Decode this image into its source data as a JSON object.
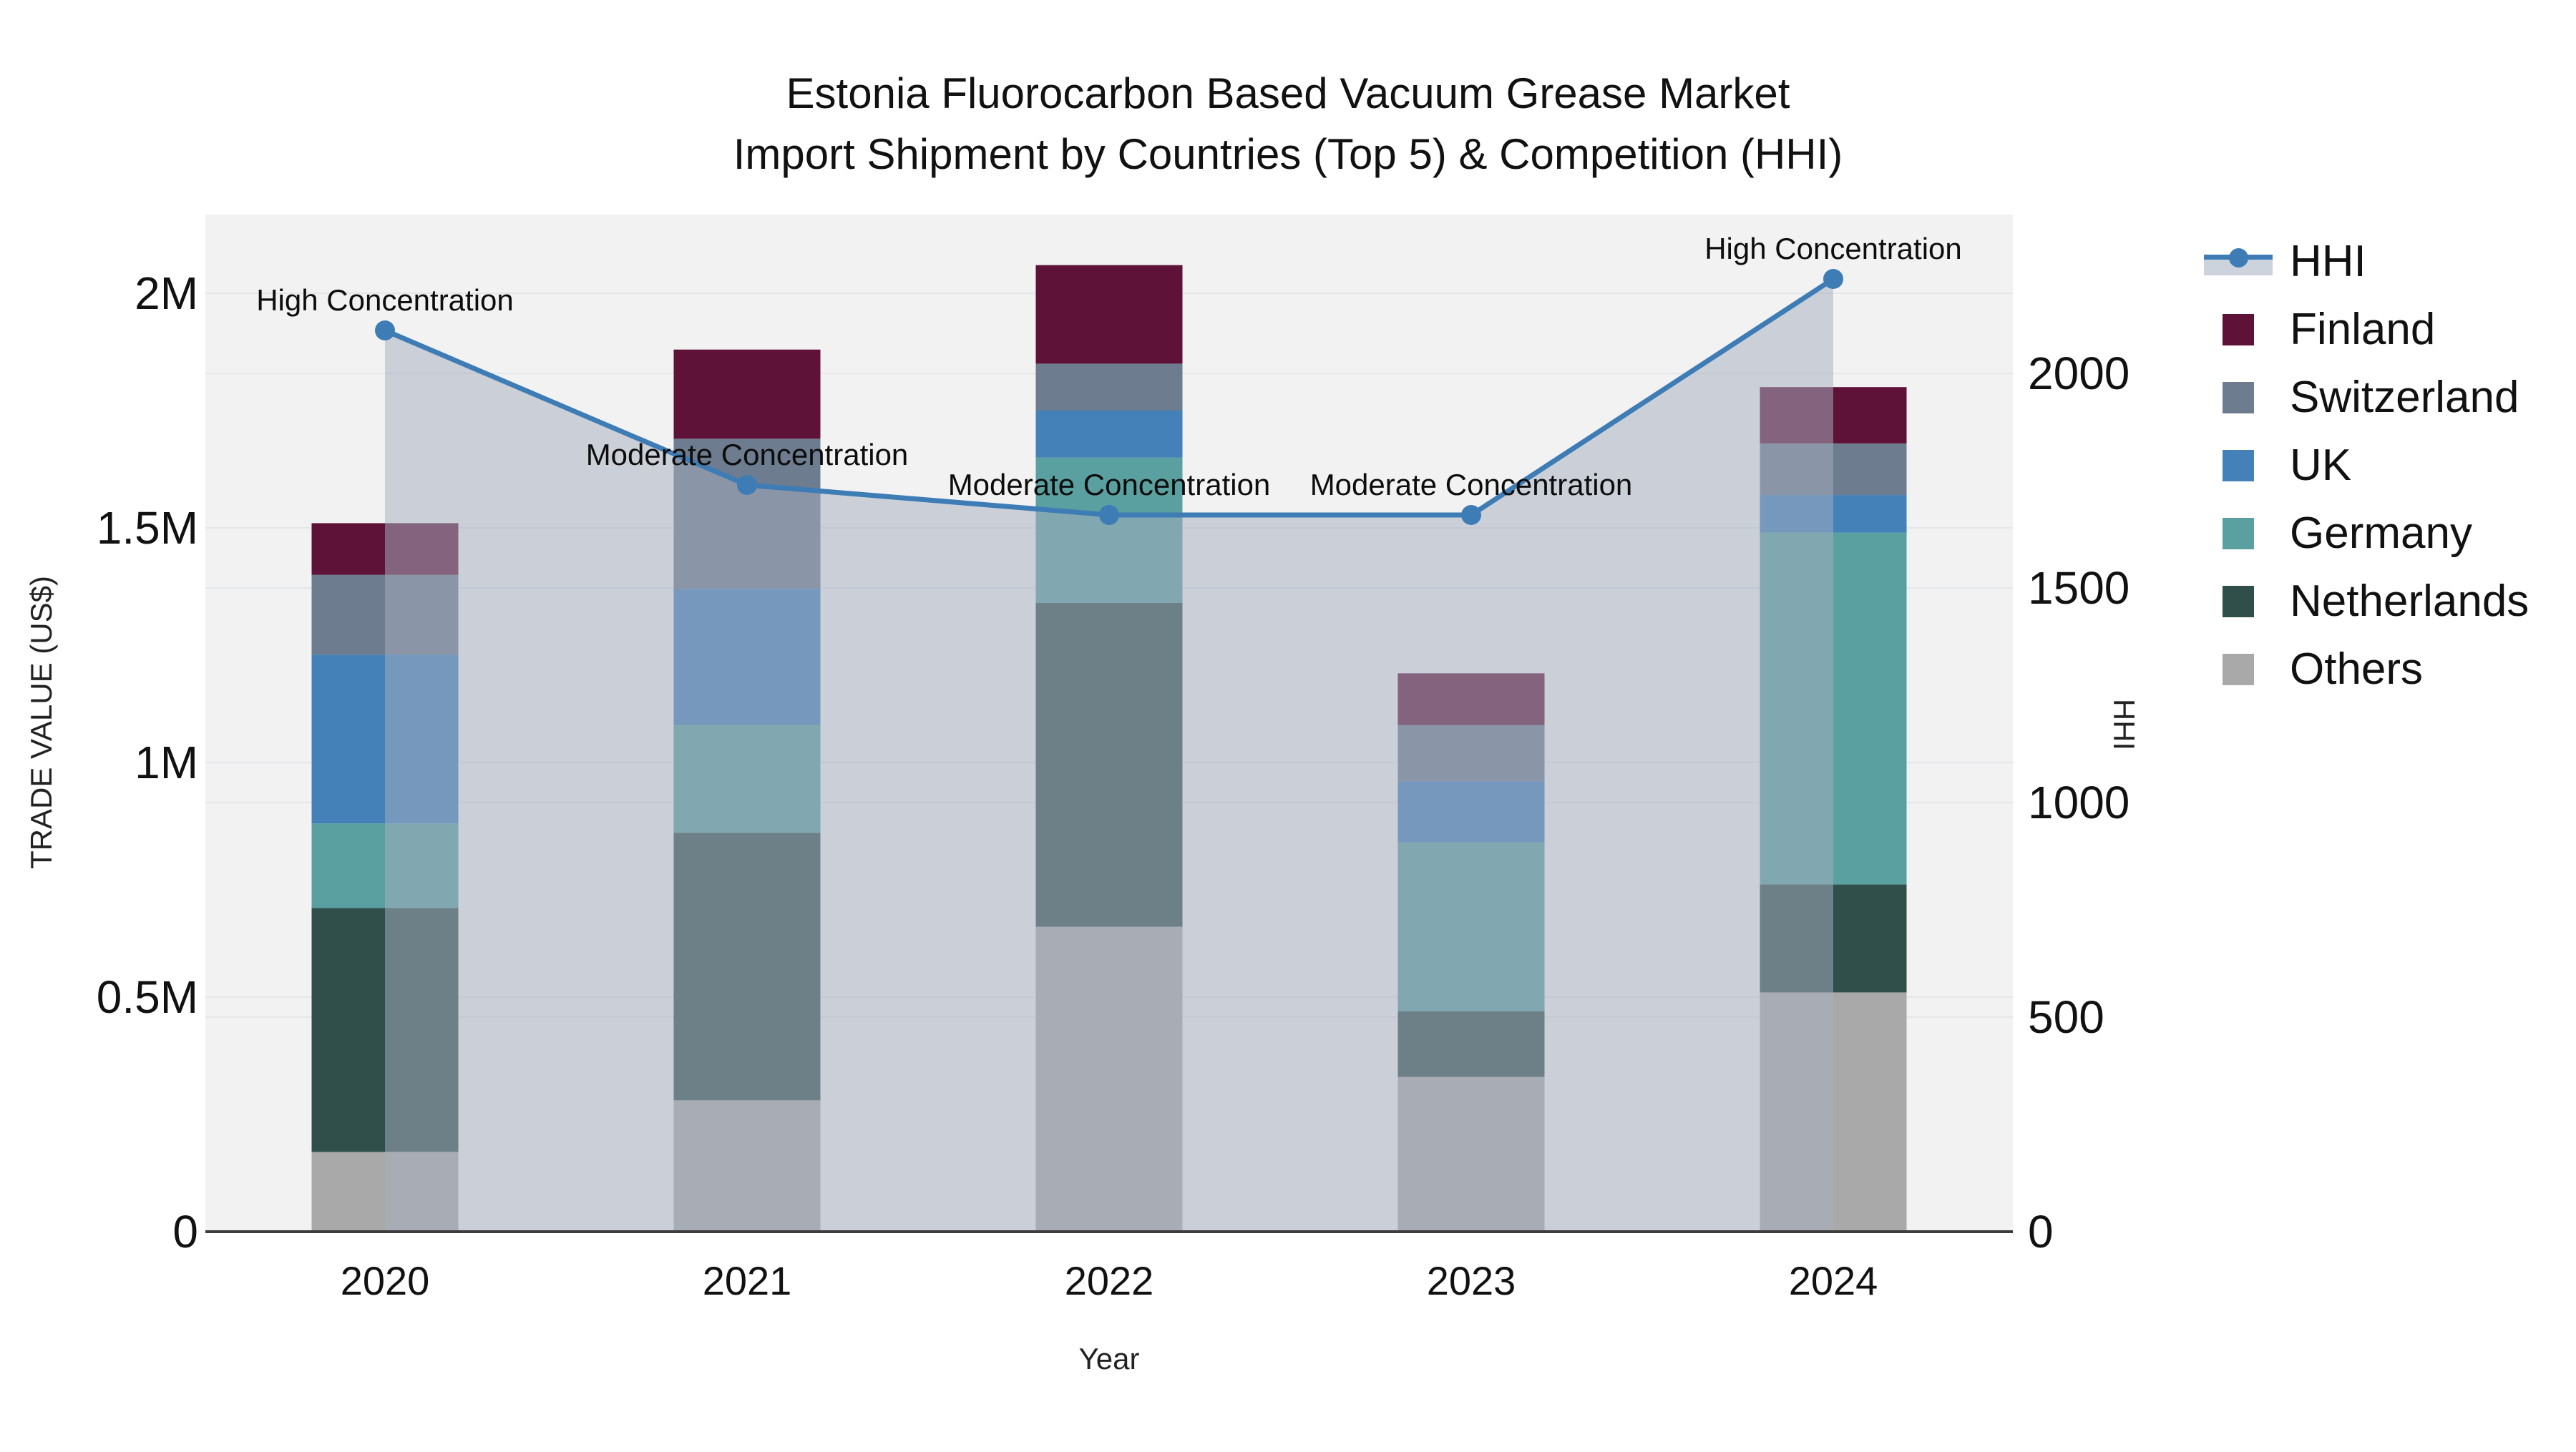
{
  "title": {
    "line1": "Estonia Fluorocarbon Based Vacuum Grease Market",
    "line2": "Import Shipment by Countries (Top 5) & Competition (HHI)"
  },
  "axes": {
    "x_title": "Year",
    "y_left_title": "TRADE VALUE (US$)",
    "y_right_title": "HHI"
  },
  "chart_data": {
    "type": "bar",
    "subtype": "stacked bars with secondary-axis line+area (HHI)",
    "categories": [
      2020,
      2021,
      2022,
      2023,
      2024
    ],
    "stack_order": [
      "Others",
      "Netherlands",
      "Germany",
      "UK",
      "Switzerland",
      "Finland"
    ],
    "series": [
      {
        "name": "Finland",
        "color": "#5f1237",
        "values": [
          110000,
          190000,
          210000,
          110000,
          120000
        ]
      },
      {
        "name": "Switzerland",
        "color": "#6d7c8e",
        "values": [
          170000,
          320000,
          100000,
          120000,
          110000
        ]
      },
      {
        "name": "UK",
        "color": "#4381b8",
        "values": [
          360000,
          290000,
          100000,
          130000,
          80000
        ]
      },
      {
        "name": "Germany",
        "color": "#5ba0a0",
        "values": [
          180000,
          230000,
          310000,
          360000,
          750000
        ]
      },
      {
        "name": "Netherlands",
        "color": "#314f4a",
        "values": [
          520000,
          570000,
          690000,
          140000,
          230000
        ]
      },
      {
        "name": "Others",
        "color": "#a9a9aa",
        "values": [
          170000,
          280000,
          650000,
          330000,
          510000
        ]
      }
    ],
    "line_series": {
      "name": "HHI",
      "color": "#3e7cb5",
      "area_color": "rgba(164,174,191,0.52)",
      "values": [
        2100,
        1740,
        1670,
        1670,
        2220
      ]
    },
    "annotations": [
      {
        "x": 2020,
        "text": "High Concentration"
      },
      {
        "x": 2021,
        "text": "Moderate Concentration"
      },
      {
        "x": 2022,
        "text": "Moderate Concentration"
      },
      {
        "x": 2023,
        "text": "Moderate Concentration"
      },
      {
        "x": 2024,
        "text": "High Concentration"
      }
    ],
    "xlabel": "Year",
    "ylabel_left": "TRADE VALUE (US$)",
    "ylabel_right": "HHI",
    "y_left_ticks": [
      {
        "value": 0,
        "label": "0"
      },
      {
        "value": 500000,
        "label": "0.5M"
      },
      {
        "value": 1000000,
        "label": "1M"
      },
      {
        "value": 1500000,
        "label": "1.5M"
      },
      {
        "value": 2000000,
        "label": "2M"
      }
    ],
    "y_right_ticks": [
      {
        "value": 0,
        "label": "0"
      },
      {
        "value": 500,
        "label": "500"
      },
      {
        "value": 1000,
        "label": "1000"
      },
      {
        "value": 1500,
        "label": "1500"
      },
      {
        "value": 2000,
        "label": "2000"
      }
    ],
    "ylim_left": [
      0,
      2170000
    ],
    "ylim_right": [
      0,
      2370
    ],
    "grid": true,
    "legend_position": "right-outside",
    "plot_bg": "#f2f2f3",
    "grid_color": "#e4e6e9",
    "axisline_color": "#3c3c3c",
    "text_color": "#111111"
  },
  "legend": {
    "hhi_label": "HHI",
    "entries": [
      "HHI",
      "Finland",
      "Switzerland",
      "UK",
      "Germany",
      "Netherlands",
      "Others"
    ]
  }
}
